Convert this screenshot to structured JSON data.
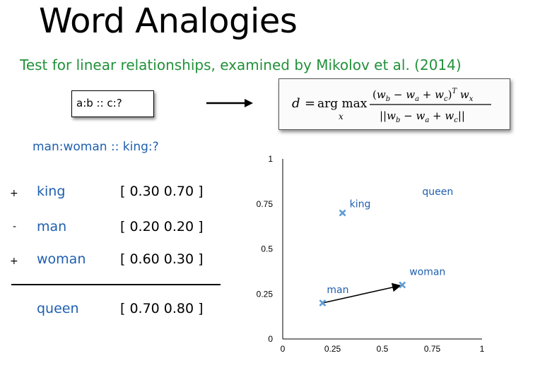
{
  "header": {
    "title": "Word Analogies",
    "subtitle": "Test for linear relationships, examined by Mikolov et al. (2014)"
  },
  "pattern": "a:b :: c:?",
  "formula": {
    "lhs": "d",
    "op": "arg max",
    "sub": "x",
    "numerator": "(w_b − w_a + w_c)^T w_x",
    "denominator": "||w_b − w_a + w_c||"
  },
  "analogy": "man:woman :: king:?",
  "rows": [
    {
      "sign": "+",
      "word": "king",
      "vector": "[ 0.30 0.70 ]"
    },
    {
      "sign": "-",
      "word": "man",
      "vector": "[ 0.20 0.20 ]"
    },
    {
      "sign": "+",
      "word": "woman",
      "vector": "[ 0.60 0.30 ]"
    }
  ],
  "result": {
    "word": "queen",
    "vector": "[ 0.70 0.80 ]"
  },
  "colors": {
    "title_green": "#22913a",
    "word_blue": "#1f5fb0",
    "marker": "#5b9bd5"
  },
  "chart_data": {
    "type": "scatter",
    "xlim": [
      0,
      1
    ],
    "ylim": [
      0,
      1
    ],
    "xticks": [
      "0",
      "0.25",
      "0.5",
      "0.75",
      "1"
    ],
    "yticks": [
      "0",
      "0.25",
      "0.5",
      "0.75",
      "1"
    ],
    "points": [
      {
        "label": "king",
        "x": 0.3,
        "y": 0.7,
        "marker": true
      },
      {
        "label": "man",
        "x": 0.2,
        "y": 0.2,
        "marker": true
      },
      {
        "label": "woman",
        "x": 0.6,
        "y": 0.3,
        "marker": true
      },
      {
        "label": "queen",
        "x": 0.7,
        "y": 0.8,
        "marker": false
      }
    ],
    "arrow": {
      "from": [
        0.2,
        0.2
      ],
      "to": [
        0.6,
        0.3
      ]
    }
  }
}
